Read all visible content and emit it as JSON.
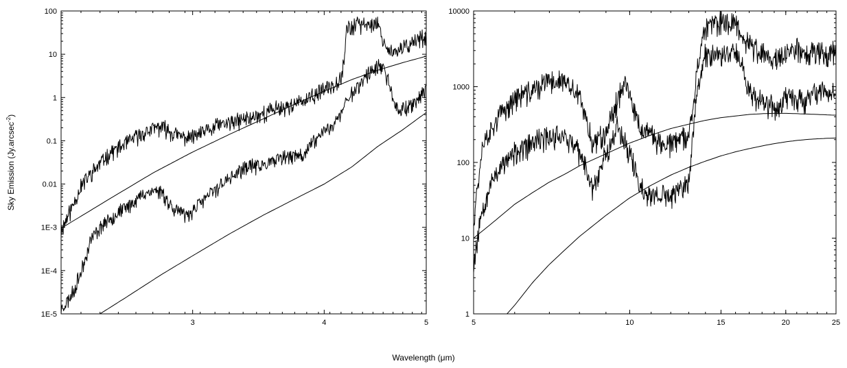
{
  "figure": {
    "ylabel_main": "Sky Emission (Jy.arcsec",
    "ylabel_exp": "-2",
    "ylabel_close": ")",
    "xlabel": "Wavelength (μm)"
  },
  "chart_data": [
    {
      "type": "line",
      "title": "",
      "xlabel": "Wavelength (μm)",
      "ylabel": "Sky Emission (Jy.arcsec-2)",
      "xscale": "log",
      "yscale": "log",
      "xlim": [
        2.25,
        5.0
      ],
      "ylim": [
        1e-05,
        100
      ],
      "grid": false,
      "xticks": [
        {
          "v": 3,
          "label": "3"
        },
        {
          "v": 4,
          "label": "4"
        },
        {
          "v": 5,
          "label": "5"
        }
      ],
      "yticks": [
        {
          "v": 1e-05,
          "label": "1E-5"
        },
        {
          "v": 0.0001,
          "label": "1E-4"
        },
        {
          "v": 0.001,
          "label": "1E-3"
        },
        {
          "v": 0.01,
          "label": "0.01"
        },
        {
          "v": 0.1,
          "label": "0.1"
        },
        {
          "v": 1,
          "label": "1"
        },
        {
          "v": 10,
          "label": "10"
        },
        {
          "v": 100,
          "label": "100"
        }
      ],
      "series": [
        {
          "noise": 0.5,
          "seed": 11,
          "points": [
            [
              2.25,
              0.001
            ],
            [
              2.3,
              0.003
            ],
            [
              2.35,
              0.01
            ],
            [
              2.4,
              0.02
            ],
            [
              2.45,
              0.035
            ],
            [
              2.5,
              0.06
            ],
            [
              2.55,
              0.08
            ],
            [
              2.6,
              0.1
            ],
            [
              2.65,
              0.14
            ],
            [
              2.7,
              0.18
            ],
            [
              2.75,
              0.22
            ],
            [
              2.8,
              0.25
            ],
            [
              2.85,
              0.2
            ],
            [
              2.9,
              0.15
            ],
            [
              3.0,
              0.14
            ],
            [
              3.1,
              0.2
            ],
            [
              3.2,
              0.28
            ],
            [
              3.3,
              0.32
            ],
            [
              3.4,
              0.4
            ],
            [
              3.5,
              0.5
            ],
            [
              3.6,
              0.65
            ],
            [
              3.7,
              0.75
            ],
            [
              3.8,
              0.9
            ],
            [
              3.9,
              1.2
            ],
            [
              4.0,
              1.8
            ],
            [
              4.1,
              2.6
            ],
            [
              4.15,
              3.5
            ],
            [
              4.18,
              10
            ],
            [
              4.2,
              45
            ],
            [
              4.3,
              55
            ],
            [
              4.4,
              60
            ],
            [
              4.5,
              58
            ],
            [
              4.55,
              25
            ],
            [
              4.6,
              15
            ],
            [
              4.7,
              12
            ],
            [
              4.8,
              20
            ],
            [
              4.9,
              25
            ],
            [
              5.0,
              30
            ]
          ]
        },
        {
          "noise": 0.45,
          "seed": 23,
          "points": [
            [
              2.25,
              1.5e-05
            ],
            [
              2.3,
              3e-05
            ],
            [
              2.35,
              0.0001
            ],
            [
              2.4,
              0.0006
            ],
            [
              2.45,
              0.0012
            ],
            [
              2.5,
              0.0018
            ],
            [
              2.55,
              0.0025
            ],
            [
              2.6,
              0.0035
            ],
            [
              2.65,
              0.005
            ],
            [
              2.7,
              0.007
            ],
            [
              2.75,
              0.008
            ],
            [
              2.8,
              0.008
            ],
            [
              2.85,
              0.004
            ],
            [
              2.9,
              0.003
            ],
            [
              2.95,
              0.002
            ],
            [
              3.0,
              0.0028
            ],
            [
              3.1,
              0.006
            ],
            [
              3.2,
              0.012
            ],
            [
              3.3,
              0.02
            ],
            [
              3.4,
              0.03
            ],
            [
              3.5,
              0.03
            ],
            [
              3.6,
              0.04
            ],
            [
              3.7,
              0.05
            ],
            [
              3.8,
              0.05
            ],
            [
              3.9,
              0.1
            ],
            [
              4.0,
              0.2
            ],
            [
              4.1,
              0.3
            ],
            [
              4.15,
              0.5
            ],
            [
              4.2,
              1
            ],
            [
              4.3,
              2
            ],
            [
              4.4,
              4
            ],
            [
              4.5,
              6
            ],
            [
              4.55,
              5
            ],
            [
              4.6,
              3
            ],
            [
              4.65,
              1
            ],
            [
              4.7,
              0.6
            ],
            [
              4.8,
              0.7
            ],
            [
              4.9,
              1
            ],
            [
              5.0,
              2
            ]
          ]
        },
        {
          "noise": 0,
          "seed": 0,
          "points": [
            [
              2.25,
              0.00095
            ],
            [
              2.5,
              0.0045
            ],
            [
              2.75,
              0.018
            ],
            [
              3.0,
              0.055
            ],
            [
              3.25,
              0.14
            ],
            [
              3.5,
              0.32
            ],
            [
              3.75,
              0.7
            ],
            [
              4.0,
              1.4
            ],
            [
              4.25,
              2.6
            ],
            [
              4.5,
              4.3
            ],
            [
              4.75,
              6.4
            ],
            [
              5.0,
              9.0
            ]
          ]
        },
        {
          "noise": 0,
          "seed": 0,
          "points": [
            [
              2.45,
              1e-05
            ],
            [
              2.6,
              2.5e-05
            ],
            [
              2.8,
              8e-05
            ],
            [
              3.0,
              0.00022
            ],
            [
              3.25,
              0.0007
            ],
            [
              3.5,
              0.0019
            ],
            [
              3.75,
              0.0045
            ],
            [
              4.0,
              0.01
            ],
            [
              4.25,
              0.025
            ],
            [
              4.5,
              0.075
            ],
            [
              4.75,
              0.18
            ],
            [
              5.0,
              0.45
            ]
          ]
        }
      ]
    },
    {
      "type": "line",
      "title": "",
      "xlabel": "Wavelength (μm)",
      "ylabel": "",
      "xscale": "log",
      "yscale": "log",
      "xlim": [
        5,
        25
      ],
      "ylim": [
        1,
        10000
      ],
      "grid": false,
      "xticks": [
        {
          "v": 5,
          "label": "5"
        },
        {
          "v": 10,
          "label": "10"
        },
        {
          "v": 15,
          "label": "15"
        },
        {
          "v": 20,
          "label": "20"
        },
        {
          "v": 25,
          "label": "25"
        }
      ],
      "yticks": [
        {
          "v": 1,
          "label": "1"
        },
        {
          "v": 10,
          "label": "10"
        },
        {
          "v": 100,
          "label": "100"
        },
        {
          "v": 1000,
          "label": "1000"
        },
        {
          "v": 10000,
          "label": "10000"
        }
      ],
      "series": [
        {
          "noise": 0.4,
          "seed": 37,
          "points": [
            [
              5.0,
              20
            ],
            [
              5.2,
              200
            ],
            [
              5.5,
              400
            ],
            [
              6.0,
              800
            ],
            [
              6.5,
              1000
            ],
            [
              7.0,
              1300
            ],
            [
              7.5,
              1300
            ],
            [
              8.0,
              800
            ],
            [
              8.5,
              200
            ],
            [
              9.0,
              300
            ],
            [
              9.5,
              800
            ],
            [
              9.8,
              1400
            ],
            [
              10.0,
              800
            ],
            [
              10.5,
              300
            ],
            [
              11.0,
              250
            ],
            [
              11.5,
              200
            ],
            [
              12.0,
              200
            ],
            [
              12.5,
              220
            ],
            [
              13.0,
              250
            ],
            [
              13.5,
              2000
            ],
            [
              14.0,
              7000
            ],
            [
              15.0,
              8000
            ],
            [
              16.0,
              8000
            ],
            [
              17.0,
              4000
            ],
            [
              18.0,
              3000
            ],
            [
              19.0,
              2500
            ],
            [
              20.0,
              3000
            ],
            [
              21.0,
              3500
            ],
            [
              22.0,
              3000
            ],
            [
              23.0,
              3500
            ],
            [
              24.0,
              3000
            ],
            [
              25.0,
              3500
            ]
          ]
        },
        {
          "noise": 0.4,
          "seed": 53,
          "points": [
            [
              5.0,
              5
            ],
            [
              5.2,
              30
            ],
            [
              5.5,
              80
            ],
            [
              6.0,
              150
            ],
            [
              6.5,
              200
            ],
            [
              7.0,
              250
            ],
            [
              7.5,
              250
            ],
            [
              8.0,
              150
            ],
            [
              8.5,
              50
            ],
            [
              9.0,
              150
            ],
            [
              9.5,
              350
            ],
            [
              10.0,
              150
            ],
            [
              10.5,
              50
            ],
            [
              11.0,
              40
            ],
            [
              12.0,
              40
            ],
            [
              12.5,
              50
            ],
            [
              13.0,
              60
            ],
            [
              13.5,
              1000
            ],
            [
              14.0,
              3000
            ],
            [
              15.0,
              3000
            ],
            [
              16.0,
              3800
            ],
            [
              17.0,
              1000
            ],
            [
              18.0,
              700
            ],
            [
              19.0,
              600
            ],
            [
              20.0,
              800
            ],
            [
              21.0,
              800
            ],
            [
              22.0,
              700
            ],
            [
              23.0,
              1000
            ],
            [
              24.0,
              900
            ],
            [
              25.0,
              1000
            ]
          ]
        },
        {
          "noise": 0,
          "seed": 0,
          "points": [
            [
              5.0,
              10
            ],
            [
              5.5,
              17
            ],
            [
              6.0,
              28
            ],
            [
              6.5,
              40
            ],
            [
              7.0,
              55
            ],
            [
              7.5,
              70
            ],
            [
              8.0,
              90
            ],
            [
              9.0,
              130
            ],
            [
              10.0,
              180
            ],
            [
              11.0,
              230
            ],
            [
              12.0,
              280
            ],
            [
              13.0,
              320
            ],
            [
              14.0,
              360
            ],
            [
              15.0,
              390
            ],
            [
              16.0,
              410
            ],
            [
              17.0,
              430
            ],
            [
              18.0,
              440
            ],
            [
              19.0,
              445
            ],
            [
              20.0,
              445
            ],
            [
              21.0,
              440
            ],
            [
              22.0,
              435
            ],
            [
              23.0,
              430
            ],
            [
              24.0,
              425
            ],
            [
              25.0,
              420
            ]
          ]
        },
        {
          "noise": 0,
          "seed": 0,
          "points": [
            [
              5.8,
              1
            ],
            [
              6.0,
              1.3
            ],
            [
              6.5,
              2.6
            ],
            [
              7.0,
              4.5
            ],
            [
              7.5,
              7
            ],
            [
              8.0,
              10.5
            ],
            [
              9.0,
              20
            ],
            [
              10.0,
              34
            ],
            [
              11.0,
              50
            ],
            [
              12.0,
              68
            ],
            [
              13.0,
              86
            ],
            [
              14.0,
              104
            ],
            [
              15.0,
              122
            ],
            [
              16.0,
              138
            ],
            [
              17.0,
              152
            ],
            [
              18.0,
              165
            ],
            [
              19.0,
              177
            ],
            [
              20.0,
              187
            ],
            [
              21.0,
              195
            ],
            [
              22.0,
              201
            ],
            [
              23.0,
              205
            ],
            [
              24.0,
              208
            ],
            [
              25.0,
              210
            ]
          ]
        }
      ]
    }
  ]
}
